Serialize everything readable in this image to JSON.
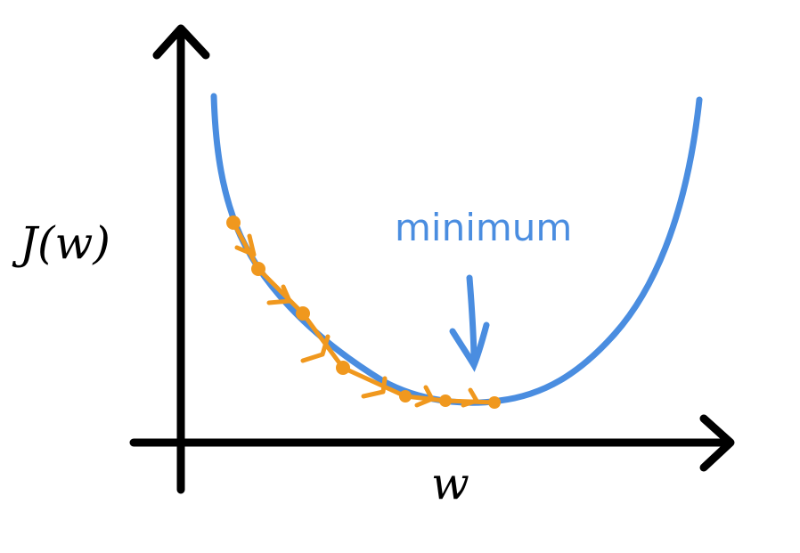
{
  "labels": {
    "y_axis": "J(w)",
    "x_axis": "w",
    "annotation": "minimum"
  }
}
